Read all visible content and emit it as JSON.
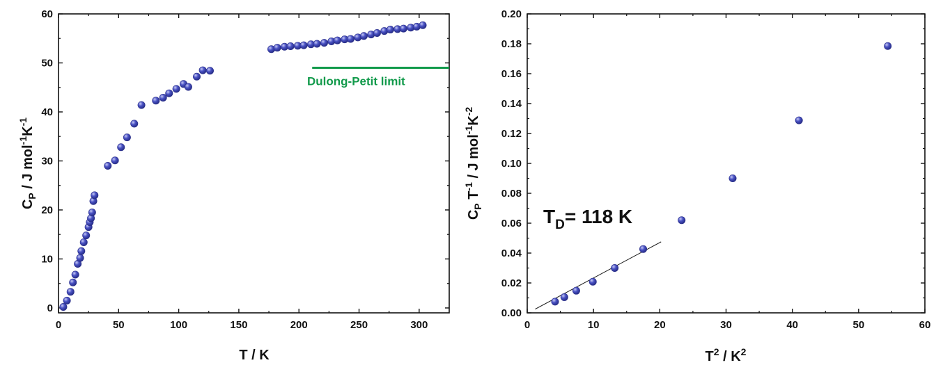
{
  "colors": {
    "marker": "#3f47b8",
    "marker_highlight": "#b8bcf0",
    "dulong_line": "#129a4b",
    "fit_line": "#222222",
    "axis": "#111111"
  },
  "chart_data": [
    {
      "type": "scatter",
      "title": "",
      "xlabel": "T / K",
      "ylabel": {
        "main": "C",
        "sub": "P",
        "rest": " / J mol",
        "sup1": "-1",
        "mid": "K",
        "sup2": "-1"
      },
      "xlim": [
        0,
        325
      ],
      "ylim": [
        -1,
        60
      ],
      "xticks": [
        "0",
        "50",
        "100",
        "150",
        "200",
        "250",
        "300"
      ],
      "yticks": [
        "0",
        "10",
        "20",
        "30",
        "40",
        "50",
        "60"
      ],
      "grid": false,
      "series": [
        {
          "points": [
            [
              4,
              0.2
            ],
            [
              7,
              1.5
            ],
            [
              10,
              3.3
            ],
            [
              12,
              5.2
            ],
            [
              14,
              6.8
            ],
            [
              16,
              9.0
            ],
            [
              18,
              10.2
            ],
            [
              19,
              11.6
            ],
            [
              21,
              13.4
            ],
            [
              23,
              14.8
            ],
            [
              25,
              16.5
            ],
            [
              26,
              17.5
            ],
            [
              27,
              18.3
            ],
            [
              28,
              19.5
            ],
            [
              29,
              21.8
            ],
            [
              30,
              23.0
            ],
            [
              41,
              29.0
            ],
            [
              47,
              30.1
            ],
            [
              52,
              32.8
            ],
            [
              57,
              34.8
            ],
            [
              63,
              37.6
            ],
            [
              69,
              41.4
            ],
            [
              81,
              42.3
            ],
            [
              87,
              42.9
            ],
            [
              92,
              43.8
            ],
            [
              98,
              44.7
            ],
            [
              104,
              45.7
            ],
            [
              108,
              45.1
            ],
            [
              115,
              47.2
            ],
            [
              120,
              48.5
            ],
            [
              126,
              48.4
            ],
            [
              177,
              52.8
            ],
            [
              182,
              53.1
            ],
            [
              188,
              53.3
            ],
            [
              193,
              53.4
            ],
            [
              199,
              53.5
            ],
            [
              204,
              53.6
            ],
            [
              210,
              53.8
            ],
            [
              215,
              53.9
            ],
            [
              221,
              54.1
            ],
            [
              227,
              54.4
            ],
            [
              232,
              54.6
            ],
            [
              238,
              54.8
            ],
            [
              243,
              54.9
            ],
            [
              249,
              55.2
            ],
            [
              254,
              55.5
            ],
            [
              260,
              55.8
            ],
            [
              265,
              56.1
            ],
            [
              271,
              56.5
            ],
            [
              276,
              56.8
            ],
            [
              282,
              56.9
            ],
            [
              287,
              57.0
            ],
            [
              293,
              57.2
            ],
            [
              298,
              57.4
            ],
            [
              303,
              57.7
            ]
          ]
        }
      ],
      "annotations": {
        "dulong_label": "Dulong-Petit limit",
        "dulong_value": 49,
        "dulong_x_start": 211,
        "dulong_x_end": 325
      }
    },
    {
      "type": "scatter",
      "title": "",
      "xlabel": {
        "main": "T",
        "sup": "2",
        "rest": " / K",
        "sup2": "2"
      },
      "ylabel": {
        "main": "C",
        "sub": "P",
        "mid": " T",
        "sup1": "-1",
        "rest": " / J mol",
        "sup2": "-1",
        "mid2": "K",
        "sup3": "-2"
      },
      "xlim": [
        0,
        60
      ],
      "ylim": [
        0,
        0.2
      ],
      "xticks": [
        "0",
        "10",
        "20",
        "30",
        "40",
        "50",
        "60"
      ],
      "yticks": [
        "0.00",
        "0.02",
        "0.04",
        "0.06",
        "0.08",
        "0.10",
        "0.12",
        "0.14",
        "0.16",
        "0.18",
        "0.20"
      ],
      "grid": false,
      "series": [
        {
          "points": [
            [
              4.2,
              0.0075
            ],
            [
              5.6,
              0.0105
            ],
            [
              7.4,
              0.0148
            ],
            [
              9.9,
              0.0208
            ],
            [
              13.2,
              0.03
            ],
            [
              17.5,
              0.0427
            ],
            [
              23.3,
              0.062
            ],
            [
              31.0,
              0.09
            ],
            [
              41.0,
              0.1288
            ],
            [
              54.4,
              0.1785
            ]
          ]
        }
      ],
      "fit_line": {
        "x": [
          1.2,
          20.2
        ],
        "y": [
          0.0025,
          0.0475
        ]
      },
      "annotations": {
        "td_main": "T",
        "td_sub": "D",
        "td_rest": "= 118 K"
      }
    }
  ]
}
